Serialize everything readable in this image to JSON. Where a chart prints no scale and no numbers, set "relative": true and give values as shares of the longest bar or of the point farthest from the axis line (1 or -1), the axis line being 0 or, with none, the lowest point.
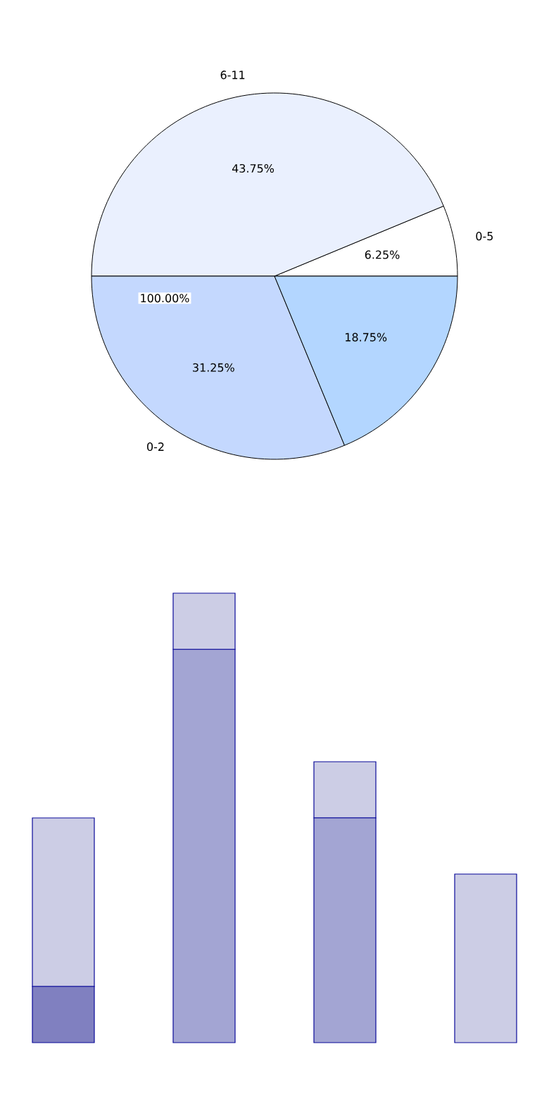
{
  "chart_data": [
    {
      "type": "pie",
      "categories": [
        "0-5",
        "6-11",
        "0-2",
        null
      ],
      "values": [
        6.25,
        43.75,
        31.25,
        18.75
      ],
      "colors": [
        "#ffffff",
        "#eaf0fe",
        "#c4d8fe",
        "#b3d6ff"
      ],
      "value_labels": [
        "6.25%",
        "43.75%",
        "31.25%",
        "18.75%"
      ],
      "annotations": [
        "100.00%"
      ]
    },
    {
      "type": "bar",
      "stacked": true,
      "relative": true,
      "categories": [
        null,
        null,
        null,
        null
      ],
      "series": [
        {
          "color": "#8080c0",
          "values": [
            0.125,
            0,
            0,
            0
          ]
        },
        {
          "color": "#a3a5d3",
          "values": [
            0,
            0.875,
            0.5,
            0
          ]
        },
        {
          "color": "#cccde5",
          "values": [
            0.375,
            0.125,
            0.125,
            0.375
          ]
        }
      ]
    }
  ]
}
